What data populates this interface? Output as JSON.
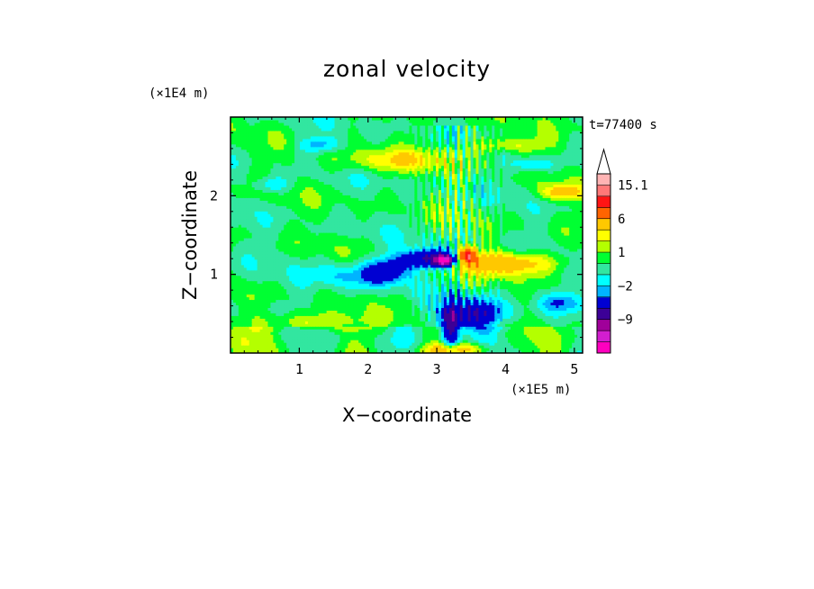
{
  "chart_data": {
    "type": "heatmap",
    "title": "zonal velocity",
    "xlabel": "X−coordinate",
    "ylabel": "Z−coordinate",
    "x_unit": "(×1E5 m)",
    "y_unit": "(×1E4 m)",
    "time_label": "t=77400 s",
    "x_ticks": [
      "1",
      "2",
      "3",
      "4",
      "5"
    ],
    "y_ticks": [
      "1",
      "2"
    ],
    "xlim": [
      0,
      5.12
    ],
    "ylim": [
      0,
      3
    ],
    "colorbar": {
      "labels": [
        "15.1",
        "6",
        "1",
        "−2",
        "−9"
      ],
      "levels": [
        -15,
        -12,
        -9,
        -6,
        -3,
        -2,
        -1,
        0,
        1,
        2,
        3,
        6,
        9,
        12,
        15.1
      ],
      "colors": [
        "#ff00bf",
        "#d21ecf",
        "#a0009a",
        "#3c0096",
        "#0000d2",
        "#00b4ff",
        "#00ffff",
        "#32e6a0",
        "#00ff32",
        "#b4ff00",
        "#ffff00",
        "#ffc800",
        "#ff6400",
        "#ff1414",
        "#ff7878",
        "#ffb4b4"
      ],
      "extend_top": true
    },
    "features": [
      {
        "x": 2.95,
        "z": 1.2,
        "rx": 0.45,
        "rz": 0.12,
        "value": -8
      },
      {
        "x": 3.1,
        "z": 1.18,
        "rx": 0.12,
        "rz": 0.06,
        "value": -13
      },
      {
        "x": 3.9,
        "z": 1.15,
        "rx": 0.85,
        "rz": 0.14,
        "value": 5
      },
      {
        "x": 3.45,
        "z": 1.25,
        "rx": 0.12,
        "rz": 0.1,
        "value": 11
      },
      {
        "x": 3.55,
        "z": 0.5,
        "rx": 0.45,
        "rz": 0.18,
        "value": -6
      },
      {
        "x": 3.2,
        "z": 0.35,
        "rx": 0.12,
        "rz": 0.3,
        "value": -7
      },
      {
        "x": 3.3,
        "z": 0.05,
        "rx": 0.45,
        "rz": 0.08,
        "value": 5
      },
      {
        "x": 1.8,
        "z": 1.0,
        "rx": 0.55,
        "rz": 0.18,
        "value": -2.5
      },
      {
        "x": 2.3,
        "z": 1.05,
        "rx": 0.3,
        "rz": 0.15,
        "value": -4
      },
      {
        "x": 4.4,
        "z": 2.4,
        "rx": 0.3,
        "rz": 0.09,
        "value": -2.5
      },
      {
        "x": 4.8,
        "z": 0.65,
        "rx": 0.3,
        "rz": 0.12,
        "value": -2.5
      },
      {
        "x": 1.3,
        "z": 2.65,
        "rx": 0.3,
        "rz": 0.1,
        "value": -2.5
      },
      {
        "x": 0.6,
        "z": 2.15,
        "rx": 0.25,
        "rz": 0.1,
        "value": -2.5
      },
      {
        "x": 1.2,
        "z": 0.4,
        "rx": 0.8,
        "rz": 0.12,
        "value": 2.5
      },
      {
        "x": 2.4,
        "z": 2.45,
        "rx": 0.9,
        "rz": 0.14,
        "value": 2.5
      },
      {
        "x": 4.0,
        "z": 2.65,
        "rx": 0.6,
        "rz": 0.1,
        "value": 2.5
      },
      {
        "x": 4.8,
        "z": 2.05,
        "rx": 0.3,
        "rz": 0.1,
        "value": 4
      }
    ]
  }
}
